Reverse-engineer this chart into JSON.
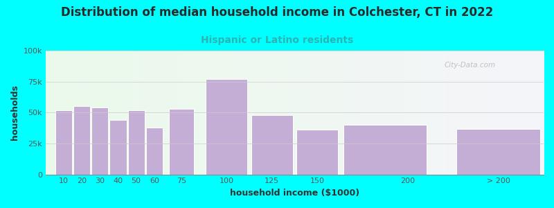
{
  "title": "Distribution of median household income in Colchester, CT in 2022",
  "subtitle": "Hispanic or Latino residents",
  "xlabel": "household income ($1000)",
  "ylabel": "households",
  "background_color": "#00FFFF",
  "bar_color": "#c5aed6",
  "bar_edgecolor": "#ffffff",
  "categories": [
    "10",
    "20",
    "30",
    "40",
    "50",
    "60",
    "75",
    "100",
    "125",
    "150",
    "200",
    "> 200"
  ],
  "values": [
    52000,
    55000,
    54000,
    44000,
    52000,
    38000,
    53000,
    77000,
    48000,
    36000,
    40000,
    36500
  ],
  "widths": [
    10,
    10,
    10,
    10,
    10,
    10,
    15,
    25,
    25,
    25,
    50,
    50
  ],
  "lefts": [
    5,
    15,
    25,
    35,
    45,
    55,
    67.5,
    87.5,
    112.5,
    137.5,
    162.5,
    225
  ],
  "xlim": [
    0,
    275
  ],
  "ylim": [
    0,
    100000
  ],
  "yticks": [
    0,
    25000,
    50000,
    75000,
    100000
  ],
  "ytick_labels": [
    "0",
    "25k",
    "50k",
    "75k",
    "100k"
  ],
  "xtick_positions": [
    10,
    20,
    30,
    40,
    50,
    60,
    75,
    100,
    125,
    150,
    200,
    250
  ],
  "xtick_labels": [
    "10",
    "20",
    "30",
    "40",
    "50",
    "60",
    "75",
    "100",
    "125",
    "150",
    "200",
    "> 200"
  ],
  "title_fontsize": 12,
  "subtitle_fontsize": 10,
  "subtitle_color": "#2ab5b5",
  "title_color": "#2a2a2a",
  "axis_label_fontsize": 9,
  "tick_fontsize": 8,
  "watermark": "City-Data.com"
}
